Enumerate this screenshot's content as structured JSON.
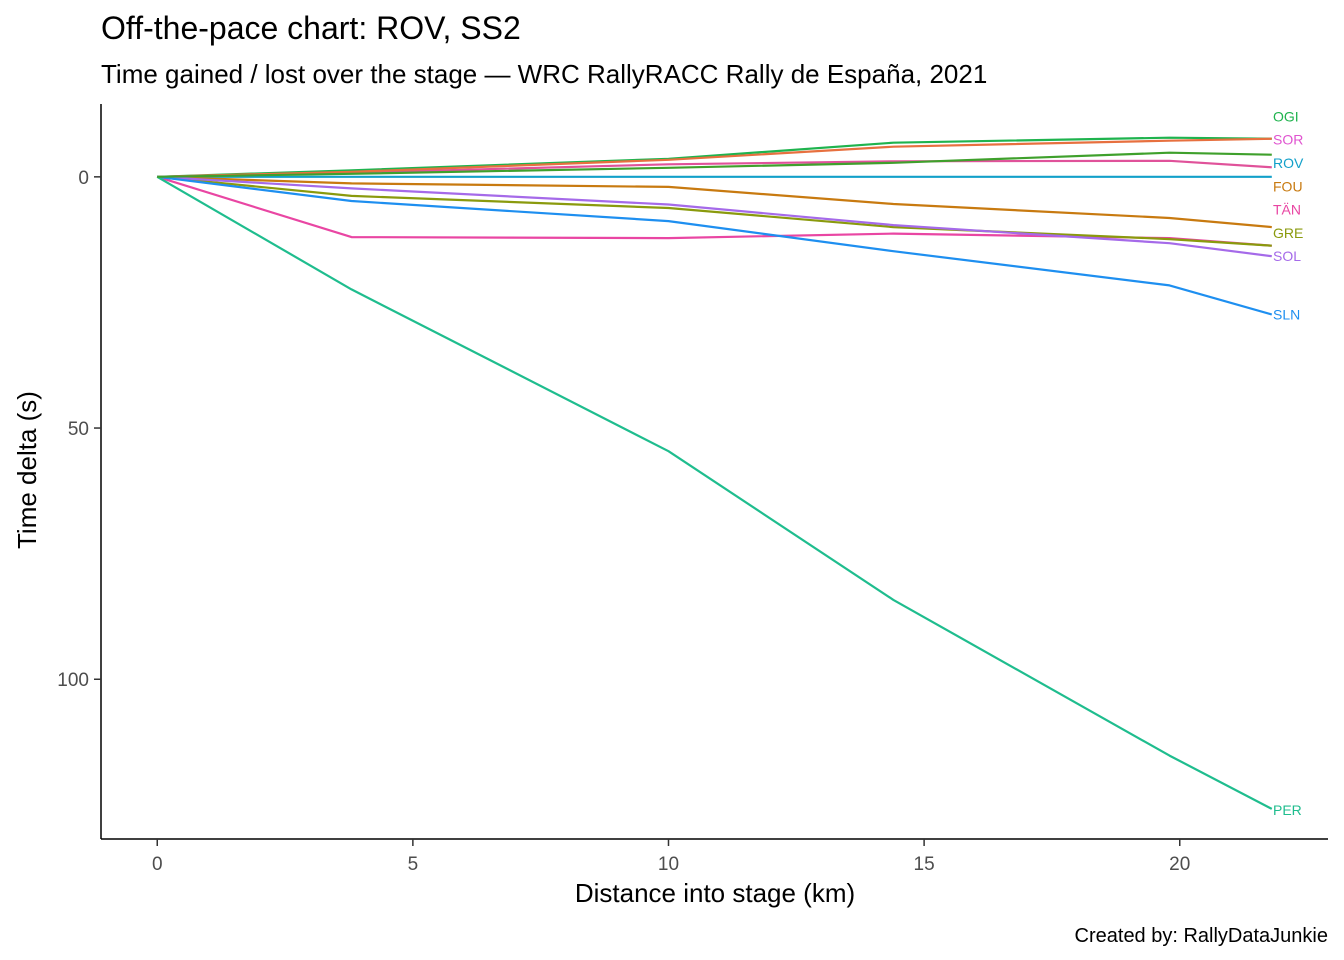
{
  "chart_data": {
    "type": "line",
    "title": "Off-the-pace chart: ROV, SS2",
    "subtitle": "Time gained / lost over the stage — WRC RallyRACC Rally de España, 2021",
    "xlabel": "Distance into stage (km)",
    "ylabel": "Time delta (s)",
    "caption": "Created by: RallyDataJunkie",
    "xlim": [
      -1.1,
      22.9
    ],
    "ylim": [
      -14.5,
      131.8
    ],
    "y_reversed": true,
    "grid": false,
    "legend": "direct labels at line ends",
    "x_ticks": [
      0,
      5,
      10,
      15,
      20
    ],
    "y_ticks": [
      0,
      50,
      100
    ],
    "x_tick_labels": [
      "0",
      "5",
      "10",
      "15",
      "20"
    ],
    "y_tick_labels": [
      "0",
      "50",
      "100"
    ],
    "series": [
      {
        "name": "OGI",
        "color": "#1fb34e",
        "x": [
          0,
          3.8,
          10,
          14.4,
          19.8,
          21.8
        ],
        "y": [
          0,
          -1.3,
          -3.6,
          -6.8,
          -7.8,
          -7.6
        ]
      },
      {
        "name": "SOR",
        "color": "#e0529a",
        "x": [
          0,
          3.8,
          10,
          14.4,
          19.8,
          21.8
        ],
        "y": [
          0,
          -0.8,
          -2.5,
          -3.1,
          -3.2,
          -1.9
        ]
      },
      {
        "name": "SOR",
        "color": "#e7703f",
        "x": [
          0,
          3.8,
          10,
          14.4,
          19.8,
          21.8
        ],
        "y": [
          0,
          -1.0,
          -3.4,
          -6.0,
          -7.2,
          -7.6
        ]
      },
      {
        "name": "ROV",
        "color": "#12a0c9",
        "x": [
          0,
          3.8,
          10,
          14.4,
          19.8,
          21.8
        ],
        "y": [
          0,
          0,
          0,
          0,
          0,
          0
        ]
      },
      {
        "name": "FOU",
        "color": "#c87a10",
        "x": [
          0,
          3.8,
          10,
          14.4,
          19.8,
          21.8
        ],
        "y": [
          0,
          1.3,
          2.0,
          5.4,
          8.2,
          10.0
        ]
      },
      {
        "name": "TÄN",
        "color": "#e946a3",
        "x": [
          0,
          3.8,
          10,
          14.4,
          19.8,
          21.8
        ],
        "y": [
          0,
          12.0,
          12.2,
          11.3,
          12.2,
          13.7
        ]
      },
      {
        "name": "GRE",
        "color": "#8a9a0d",
        "x": [
          0,
          3.8,
          10,
          14.4,
          19.8,
          21.8
        ],
        "y": [
          0,
          3.8,
          6.2,
          10.0,
          12.4,
          13.7
        ]
      },
      {
        "name": "SOL",
        "color": "#a56ae9",
        "x": [
          0,
          3.8,
          10,
          14.4,
          19.8,
          21.8
        ],
        "y": [
          0,
          2.3,
          5.5,
          9.6,
          13.2,
          15.8
        ]
      },
      {
        "name": "SLN",
        "color": "#1e8ff0",
        "x": [
          0,
          3.8,
          10,
          14.4,
          19.8,
          21.8
        ],
        "y": [
          0,
          4.8,
          8.8,
          14.8,
          21.6,
          27.4
        ]
      },
      {
        "name": "PER",
        "color": "#1fbd8e",
        "x": [
          0,
          3.8,
          10,
          14.4,
          19.8,
          21.8
        ],
        "y": [
          0,
          22.4,
          54.6,
          84.2,
          115.2,
          125.8
        ]
      },
      {
        "name": "",
        "color": "#3fa02c",
        "x": [
          0,
          3.8,
          10,
          14.4,
          19.8,
          21.8
        ],
        "y": [
          0,
          -0.6,
          -1.8,
          -2.8,
          -4.8,
          -4.4
        ]
      }
    ],
    "end_labels": [
      {
        "text": "OGI",
        "color": "#1fb34e",
        "y": -12.0
      },
      {
        "text": "SOR",
        "color": "#e054d0",
        "y": -7.4
      },
      {
        "text": "ROV",
        "color": "#12a0c9",
        "y": -2.8
      },
      {
        "text": "FOU",
        "color": "#c87a10",
        "y": 1.9
      },
      {
        "text": "TÄN",
        "color": "#e946a3",
        "y": 6.5
      },
      {
        "text": "GRE",
        "color": "#8a9a0d",
        "y": 11.2
      },
      {
        "text": "SOL",
        "color": "#a56ae9",
        "y": 15.8
      },
      {
        "text": "SLN",
        "color": "#1e8ff0",
        "y": 27.4
      },
      {
        "text": "PER",
        "color": "#1fbd8e",
        "y": 126.0
      }
    ]
  }
}
